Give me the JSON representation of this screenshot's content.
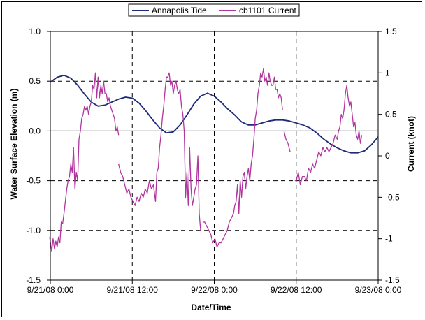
{
  "chart_data": {
    "type": "line",
    "xlabel": "Date/Time",
    "ylabel_left": "Water Surface Elevation (m)",
    "ylabel_right": "Current (knot)",
    "x_tick_labels": [
      "9/21/08 0:00",
      "9/21/08 12:00",
      "9/22/08 0:00",
      "9/22/08 12:00",
      "9/23/08 0:00"
    ],
    "x_unit": "hours since 9/21/08 0:00",
    "xlim": [
      0,
      48
    ],
    "ylim_left": [
      -1.5,
      1.0
    ],
    "ylim_right": [
      -1.5,
      1.5
    ],
    "y_left_ticks": [
      1.0,
      0.5,
      0.0,
      -0.5,
      -1.0,
      -1.5
    ],
    "y_left_tick_labels": [
      "1.0",
      "0.5",
      "0.0",
      "-0.5",
      "-1.0",
      "-1.5"
    ],
    "y_right_ticks": [
      1.5,
      1,
      0.5,
      0,
      -0.5,
      -1,
      -1.5
    ],
    "y_right_tick_labels": [
      "1.5",
      "1",
      "0.5",
      "0",
      "-0.5",
      "-1",
      "-1.5"
    ],
    "grid": "dashed at major ticks",
    "legend_position": "top-center",
    "colors": {
      "tide": "#1f2a78",
      "current": "#b0359f",
      "grid": "#000000"
    },
    "series": [
      {
        "name": "Annapolis Tide",
        "axis": "left",
        "color": "#1f2a78",
        "x": [
          0,
          1,
          2,
          3,
          4,
          5,
          6,
          7,
          8,
          9,
          10,
          11,
          12,
          13,
          14,
          15,
          16,
          17,
          18,
          19,
          20,
          21,
          22,
          23,
          24,
          25,
          26,
          27,
          28,
          29,
          30,
          31,
          32,
          33,
          34,
          35,
          36,
          37,
          38,
          39,
          40,
          41,
          42,
          43,
          44,
          45,
          46,
          47,
          48
        ],
        "values": [
          0.49,
          0.54,
          0.56,
          0.53,
          0.46,
          0.37,
          0.29,
          0.25,
          0.26,
          0.29,
          0.32,
          0.34,
          0.33,
          0.28,
          0.2,
          0.11,
          0.03,
          -0.02,
          -0.01,
          0.06,
          0.16,
          0.27,
          0.35,
          0.38,
          0.35,
          0.29,
          0.22,
          0.16,
          0.09,
          0.06,
          0.06,
          0.08,
          0.1,
          0.11,
          0.11,
          0.1,
          0.08,
          0.06,
          0.03,
          -0.02,
          -0.08,
          -0.13,
          -0.17,
          -0.2,
          -0.22,
          -0.22,
          -0.2,
          -0.14,
          -0.06
        ]
      },
      {
        "name": "cb1101 Current",
        "axis": "right",
        "color": "#b0359f",
        "segments": [
          {
            "x": [
              -0.1,
              0.2,
              0.4,
              0.6,
              0.8,
              1.0,
              1.2,
              1.4,
              1.6,
              1.8,
              2.0,
              2.2,
              2.4,
              2.6,
              2.8,
              3.0,
              3.2,
              3.4,
              3.6,
              3.8,
              4.0,
              4.2,
              4.4,
              4.6,
              4.8,
              5.0,
              5.2,
              5.4,
              5.6,
              5.8,
              6.0,
              6.2,
              6.4,
              6.6,
              6.8,
              7.0,
              7.2,
              7.4,
              7.6,
              7.8,
              8.0,
              8.2,
              8.4,
              8.6,
              8.8,
              9.0,
              9.2,
              9.4,
              9.6,
              9.8,
              10.0
            ],
            "values": [
              -0.98,
              -1.15,
              -1.0,
              -1.12,
              -1.03,
              -1.1,
              -0.98,
              -1.05,
              -0.8,
              -0.82,
              -0.7,
              -0.55,
              -0.4,
              -0.3,
              -0.25,
              -0.1,
              -0.2,
              0.1,
              -0.4,
              -0.2,
              -0.3,
              0.2,
              0.3,
              0.45,
              0.5,
              0.6,
              0.55,
              0.6,
              0.5,
              0.6,
              0.65,
              0.85,
              0.8,
              1.0,
              0.7,
              0.95,
              0.7,
              0.85,
              0.75,
              0.9,
              0.75,
              0.75,
              0.65,
              0.7,
              0.6,
              0.55,
              0.5,
              0.45,
              0.3,
              0.35,
              0.25
            ]
          },
          {
            "x": [
              10.0,
              10.3,
              10.6,
              10.9,
              11.2,
              11.5,
              11.8,
              12.1,
              12.4,
              12.7,
              13.0,
              13.3,
              13.6,
              13.9,
              14.2,
              14.5,
              14.8,
              15.1,
              15.4,
              15.6,
              15.8,
              16.0,
              16.2,
              16.4,
              16.6,
              16.8,
              17.0,
              17.2,
              17.4,
              17.6,
              17.8,
              18.0,
              18.2,
              18.4,
              18.6,
              18.8,
              19.0,
              19.2,
              19.4,
              19.6,
              19.8,
              20.0,
              20.2,
              20.4,
              20.6,
              20.8,
              21.0,
              21.2,
              21.4,
              21.6,
              21.8,
              22.0
            ],
            "values": [
              -0.1,
              -0.2,
              -0.25,
              -0.35,
              -0.45,
              -0.4,
              -0.5,
              -0.55,
              -0.6,
              -0.5,
              -0.55,
              -0.45,
              -0.5,
              -0.4,
              -0.45,
              -0.3,
              -0.4,
              -0.35,
              -0.55,
              -0.2,
              -0.15,
              0.1,
              0.25,
              0.45,
              0.6,
              0.8,
              0.95,
              0.95,
              1.0,
              0.85,
              0.9,
              0.75,
              0.85,
              0.9,
              0.8,
              0.75,
              0.8,
              0.6,
              0.5,
              0.3,
              -0.5,
              -0.2,
              -0.6,
              0.1,
              -0.4,
              -0.6,
              -0.5,
              -0.4,
              -0.35,
              0.0,
              -0.7,
              -0.9
            ]
          },
          {
            "x": [
              22.3,
              22.6,
              22.9,
              23.2,
              23.5,
              23.8,
              24.1,
              24.4,
              24.7,
              25.0,
              25.3,
              25.6,
              25.9,
              26.2,
              26.5,
              26.8,
              27.0,
              27.2,
              27.4,
              27.6,
              27.8,
              28.0,
              28.2,
              28.4,
              28.6,
              28.8,
              29.0,
              29.2,
              29.4,
              29.6,
              29.8,
              30.0,
              30.2,
              30.4,
              30.6,
              30.8,
              31.0,
              31.2,
              31.4,
              31.6,
              31.8,
              32.0,
              32.2,
              32.4,
              32.6,
              32.8,
              33.0,
              33.2,
              33.4,
              33.6,
              33.8,
              34.0
            ],
            "values": [
              -0.8,
              -0.8,
              -0.85,
              -0.9,
              -0.95,
              -1.05,
              -1.0,
              -1.1,
              -1.05,
              -1.05,
              -1.0,
              -0.95,
              -0.9,
              -0.8,
              -0.75,
              -0.7,
              -0.6,
              -0.55,
              -0.35,
              -0.7,
              -0.3,
              -0.5,
              -0.25,
              -0.2,
              -0.4,
              -0.25,
              -0.15,
              -0.3,
              -0.1,
              0.0,
              0.2,
              0.45,
              0.55,
              0.75,
              0.85,
              1.0,
              0.95,
              1.05,
              0.9,
              0.95,
              0.85,
              1.0,
              0.9,
              0.85,
              0.85,
              0.95,
              0.8,
              0.8,
              0.7,
              0.75,
              0.7,
              0.55
            ]
          },
          {
            "x": [
              34.2,
              34.5,
              34.8,
              35.1
            ],
            "values": [
              0.3,
              0.2,
              0.15,
              0.05
            ]
          },
          {
            "x": [
              35.8,
              36.0,
              36.3,
              36.6,
              36.9,
              37.2,
              37.5,
              37.8,
              38.1,
              38.4,
              38.7,
              39.0,
              39.3,
              39.6,
              39.9,
              40.2,
              40.5,
              40.8,
              41.1,
              41.4,
              41.7,
              42.0,
              42.2,
              42.4,
              42.6,
              42.8,
              43.0,
              43.2,
              43.4,
              43.6,
              43.8,
              44.0,
              44.2,
              44.4,
              44.6,
              44.8,
              45.0,
              45.2,
              45.4,
              45.6
            ],
            "values": [
              -0.3,
              -0.3,
              -0.2,
              -0.35,
              -0.25,
              -0.25,
              -0.3,
              -0.15,
              -0.2,
              -0.1,
              -0.15,
              -0.05,
              0.05,
              0.0,
              0.1,
              0.05,
              0.1,
              0.05,
              0.1,
              0.15,
              0.25,
              0.2,
              0.3,
              0.35,
              0.5,
              0.45,
              0.55,
              0.75,
              0.85,
              0.7,
              0.6,
              0.65,
              0.5,
              0.35,
              0.4,
              0.25,
              0.2,
              0.3,
              0.15,
              0.25
            ]
          }
        ]
      }
    ]
  },
  "legend": {
    "items": [
      {
        "label": "Annapolis Tide",
        "color": "#1f2a78"
      },
      {
        "label": "cb1101 Current",
        "color": "#b0359f"
      }
    ]
  }
}
